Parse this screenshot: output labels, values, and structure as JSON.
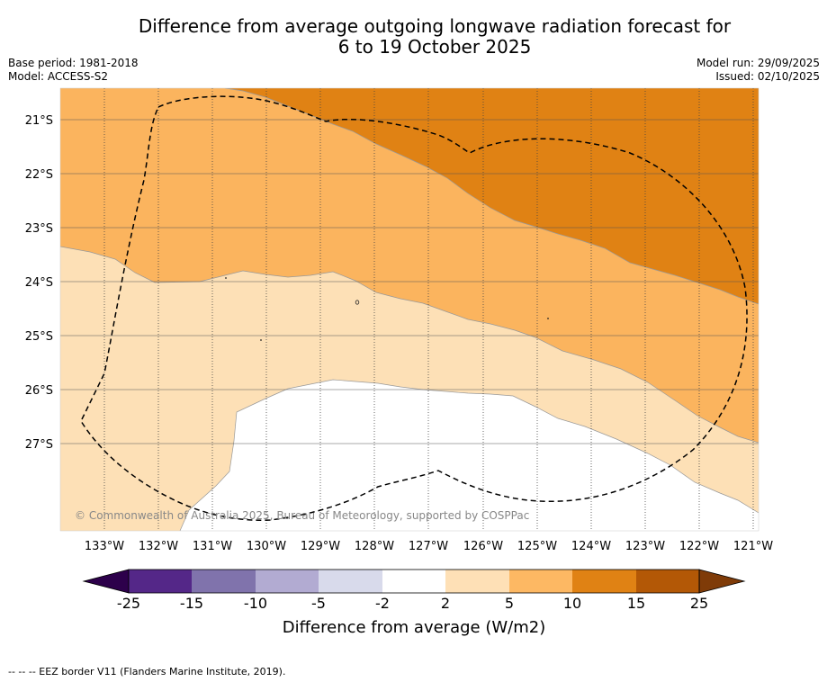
{
  "title": "Difference from average outgoing longwave radiation forecast for\n6 to 19 October 2025",
  "header": {
    "base_period": "Base period: 1981-2018",
    "model": "Model: ACCESS-S2",
    "model_run": "Model run: 29/09/2025",
    "issued": "Issued: 02/10/2025"
  },
  "map": {
    "lat_labels": [
      "21°S",
      "22°S",
      "23°S",
      "24°S",
      "25°S",
      "26°S",
      "27°S"
    ],
    "lon_labels": [
      "133°W",
      "132°W",
      "131°W",
      "130°W",
      "129°W",
      "128°W",
      "127°W",
      "126°W",
      "125°W",
      "124°W",
      "123°W",
      "122°W",
      "121°W"
    ],
    "watermark": "© Commonwealth of Australia 2025, Bureau of Meteorology, supported by COSPPac",
    "eez_label": "EEZ border V11",
    "fill_colors": {
      "band_2_5": "#fde0b6",
      "band_5_10": "#fbb45e",
      "band_10_15": "#e08214",
      "band_neutral": "#ffffff"
    }
  },
  "colorbar": {
    "label": "Difference from average (W/m2)",
    "ticks": [
      "-25",
      "-15",
      "-10",
      "-5",
      "-2",
      "2",
      "5",
      "10",
      "15",
      "25"
    ],
    "colors": [
      "#542788",
      "#8073ac",
      "#b2abd2",
      "#d8daeb",
      "#ffffff",
      "#fee0b6",
      "#fdb863",
      "#e08214",
      "#b35806"
    ],
    "under_color": "#2d004b",
    "over_color": "#7f3b08"
  },
  "footnote": "--  --  -- EEZ border V11 (Flanders Marine Institute, 2019)."
}
